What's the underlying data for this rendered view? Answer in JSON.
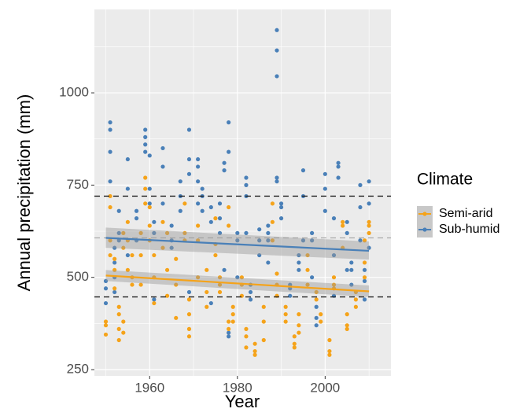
{
  "chart_data": {
    "type": "scatter",
    "xlabel": "Year",
    "ylabel": "Annual precipitation (mm)",
    "xlim": [
      1947.4,
      2015
    ],
    "ylim": [
      233,
      1226
    ],
    "xticks": [
      1960,
      1980,
      2000
    ],
    "yticks": [
      250,
      500,
      750,
      1000
    ],
    "xminorticks": [
      1950,
      1970,
      1990,
      2010
    ],
    "yminorticks": [
      375,
      625,
      875,
      1125
    ],
    "grid": true,
    "legend_title": "Climate",
    "legend_position": "right",
    "hlines": [
      {
        "value": 720,
        "color": "#222222"
      },
      {
        "value": 447,
        "color": "#222222"
      },
      {
        "value": 607,
        "color": "#aaaaaa"
      }
    ],
    "series": [
      {
        "name": "Semi-arid",
        "color": "#f5a31a",
        "x": [
          1950,
          1950,
          1950,
          1951,
          1951,
          1951,
          1951,
          1952,
          1952,
          1952,
          1953,
          1953,
          1953,
          1953,
          1954,
          1954,
          1954,
          1954,
          1955,
          1955,
          1955,
          1956,
          1956,
          1956,
          1958,
          1958,
          1958,
          1959,
          1959,
          1959,
          1960,
          1960,
          1960,
          1961,
          1961,
          1961,
          1963,
          1963,
          1964,
          1964,
          1964,
          1966,
          1966,
          1966,
          1968,
          1968,
          1968,
          1969,
          1969,
          1969,
          1969,
          1971,
          1971,
          1971,
          1973,
          1973,
          1973,
          1975,
          1975,
          1975,
          1976,
          1976,
          1976,
          1978,
          1978,
          1978,
          1978,
          1979,
          1979,
          1979,
          1981,
          1981,
          1981,
          1982,
          1982,
          1982,
          1984,
          1984,
          1984,
          1986,
          1986,
          1986,
          1988,
          1988,
          1988,
          1989,
          1989,
          1989,
          1991,
          1991,
          1991,
          1993,
          1993,
          1993,
          1994,
          1994,
          1994,
          1996,
          1996,
          1996,
          1998,
          1998,
          1999,
          1999,
          2001,
          2001,
          2001,
          2002,
          2002,
          2002,
          2004,
          2004,
          2004,
          2005,
          2005,
          2005,
          2007,
          2007,
          2007,
          2009,
          2009,
          2009,
          2010,
          2010,
          2010
        ],
        "values": [
          345,
          380,
          370,
          720,
          690,
          600,
          560,
          470,
          520,
          550,
          330,
          360,
          400,
          420,
          380,
          350,
          580,
          620,
          600,
          650,
          520,
          500,
          480,
          560,
          620,
          560,
          480,
          740,
          770,
          700,
          690,
          600,
          640,
          430,
          500,
          560,
          580,
          650,
          450,
          520,
          620,
          390,
          480,
          550,
          600,
          700,
          620,
          340,
          360,
          400,
          440,
          640,
          600,
          500,
          420,
          460,
          520,
          560,
          590,
          660,
          480,
          500,
          460,
          380,
          360,
          690,
          640,
          400,
          420,
          380,
          450,
          480,
          500,
          310,
          340,
          360,
          290,
          300,
          320,
          330,
          380,
          420,
          600,
          700,
          650,
          510,
          480,
          450,
          380,
          400,
          420,
          320,
          340,
          310,
          350,
          370,
          400,
          560,
          520,
          480,
          440,
          460,
          380,
          400,
          300,
          290,
          330,
          480,
          500,
          470,
          650,
          640,
          580,
          370,
          360,
          400,
          420,
          440,
          460,
          600,
          540,
          500,
          640,
          620,
          650
        ],
        "trend": {
          "x": [
            1950,
            2010
          ],
          "fit": [
            505,
            462
          ],
          "lower": [
            490,
            447
          ],
          "upper": [
            520,
            478
          ]
        }
      },
      {
        "name": "Sub-humid",
        "color": "#4a80b8",
        "x": [
          1950,
          1950,
          1950,
          1951,
          1951,
          1951,
          1951,
          1952,
          1952,
          1952,
          1952,
          1953,
          1953,
          1953,
          1955,
          1955,
          1955,
          1957,
          1957,
          1957,
          1959,
          1959,
          1959,
          1959,
          1960,
          1960,
          1960,
          1961,
          1961,
          1961,
          1963,
          1963,
          1963,
          1965,
          1965,
          1965,
          1967,
          1967,
          1967,
          1969,
          1969,
          1969,
          1969,
          1971,
          1971,
          1971,
          1971,
          1972,
          1972,
          1972,
          1974,
          1974,
          1974,
          1976,
          1976,
          1976,
          1977,
          1977,
          1977,
          1978,
          1978,
          1978,
          1978,
          1980,
          1980,
          1980,
          1982,
          1982,
          1982,
          1982,
          1983,
          1983,
          1983,
          1985,
          1985,
          1985,
          1987,
          1987,
          1987,
          1987,
          1989,
          1989,
          1989,
          1989,
          1989,
          1990,
          1990,
          1990,
          1992,
          1992,
          1992,
          1994,
          1994,
          1994,
          1995,
          1995,
          1995,
          1997,
          1997,
          1997,
          1998,
          1998,
          1998,
          2000,
          2000,
          2000,
          2002,
          2002,
          2002,
          2003,
          2003,
          2003,
          2005,
          2005,
          2005,
          2006,
          2006,
          2006,
          2008,
          2008,
          2008,
          2009,
          2009,
          2009,
          2010,
          2010,
          2010
        ],
        "values": [
          470,
          490,
          430,
          920,
          900,
          840,
          760,
          580,
          540,
          500,
          460,
          680,
          620,
          600,
          820,
          740,
          560,
          680,
          660,
          600,
          900,
          880,
          860,
          840,
          830,
          740,
          700,
          620,
          650,
          440,
          850,
          800,
          700,
          580,
          600,
          640,
          760,
          720,
          680,
          900,
          820,
          780,
          460,
          820,
          800,
          760,
          700,
          740,
          720,
          680,
          690,
          650,
          430,
          700,
          660,
          620,
          810,
          790,
          520,
          920,
          840,
          350,
          340,
          600,
          620,
          500,
          770,
          750,
          720,
          620,
          480,
          460,
          440,
          630,
          600,
          560,
          640,
          620,
          600,
          540,
          1170,
          1115,
          1045,
          770,
          760,
          700,
          690,
          660,
          480,
          470,
          450,
          560,
          540,
          520,
          790,
          720,
          600,
          620,
          600,
          500,
          370,
          390,
          420,
          780,
          740,
          680,
          660,
          560,
          450,
          810,
          800,
          770,
          650,
          620,
          520,
          540,
          520,
          480,
          750,
          690,
          600,
          520,
          490,
          440,
          760,
          700,
          580
        ],
        "trend": {
          "x": [
            1950,
            2010
          ],
          "fit": [
            607,
            572
          ],
          "lower": [
            580,
            548
          ],
          "upper": [
            635,
            597
          ]
        }
      }
    ]
  }
}
